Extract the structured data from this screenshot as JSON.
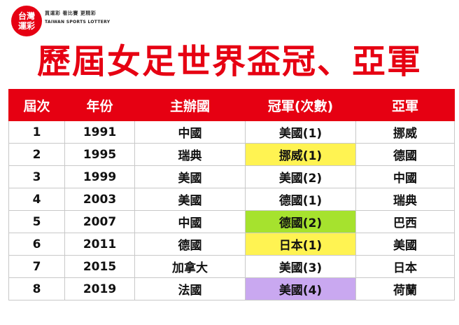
{
  "logo": {
    "text": "台灣\n運彩",
    "slogan": "買運彩 看比賽 更精彩",
    "brand_en": "TAIWAN SPORTS LOTTERY"
  },
  "title": "歷屆女足世界盃冠、亞軍",
  "table": {
    "headers": [
      "屆次",
      "年份",
      "主辦國",
      "冠軍(次數)",
      "亞軍"
    ],
    "rows": [
      {
        "edition": "1",
        "year": "1991",
        "host": "中國",
        "champion": "美國(1)",
        "runner_up": "挪威",
        "highlight": ""
      },
      {
        "edition": "2",
        "year": "1995",
        "host": "瑞典",
        "champion": "挪威(1)",
        "runner_up": "德國",
        "highlight": "yellow"
      },
      {
        "edition": "3",
        "year": "1999",
        "host": "美國",
        "champion": "美國(2)",
        "runner_up": "中國",
        "highlight": ""
      },
      {
        "edition": "4",
        "year": "2003",
        "host": "美國",
        "champion": "德國(1)",
        "runner_up": "瑞典",
        "highlight": ""
      },
      {
        "edition": "5",
        "year": "2007",
        "host": "中國",
        "champion": "德國(2)",
        "runner_up": "巴西",
        "highlight": "green"
      },
      {
        "edition": "6",
        "year": "2011",
        "host": "德國",
        "champion": "日本(1)",
        "runner_up": "美國",
        "highlight": "yellow"
      },
      {
        "edition": "7",
        "year": "2015",
        "host": "加拿大",
        "champion": "美國(3)",
        "runner_up": "日本",
        "highlight": ""
      },
      {
        "edition": "8",
        "year": "2019",
        "host": "法國",
        "champion": "美國(4)",
        "runner_up": "荷蘭",
        "highlight": "purple"
      }
    ]
  },
  "colors": {
    "brand_red": "#e60012",
    "highlight_yellow": "#fff352",
    "highlight_green": "#a6e22e",
    "highlight_purple": "#c9a8f0"
  }
}
